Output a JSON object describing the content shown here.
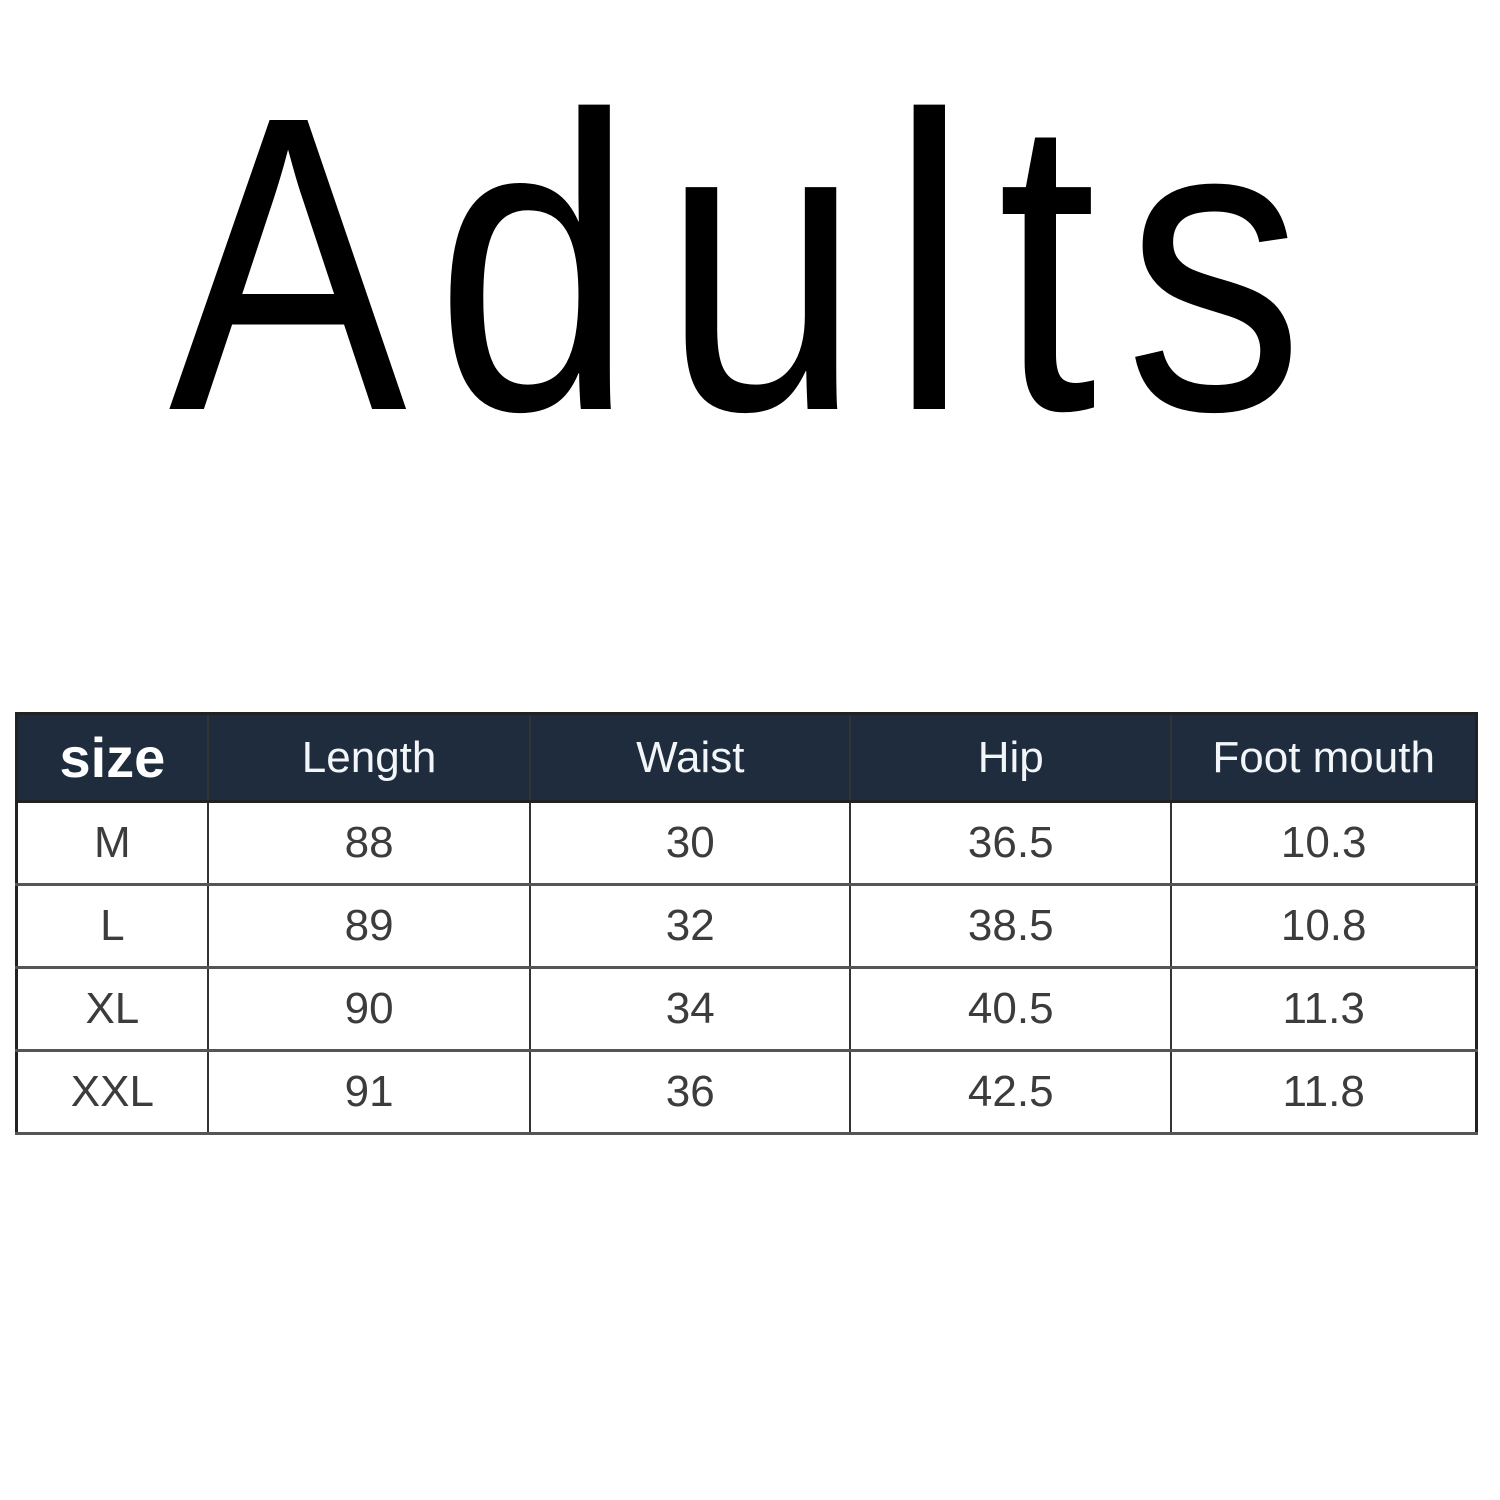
{
  "title": {
    "text": "Adults",
    "color": "#000000"
  },
  "table": {
    "columns": [
      "size",
      "Length",
      "Waist",
      "Hip",
      "Foot mouth"
    ],
    "rows": [
      [
        "M",
        "88",
        "30",
        "36.5",
        "10.3"
      ],
      [
        "L",
        "89",
        "32",
        "38.5",
        "10.8"
      ],
      [
        "XL",
        "90",
        "34",
        "40.5",
        "11.3"
      ],
      [
        "XXL",
        "91",
        "36",
        "42.5",
        "11.8"
      ]
    ],
    "colors": {
      "header_bg": "#1f2c3e",
      "header_text": "#f2f6f8",
      "size_header_text": "#ffffff",
      "body_text": "#3c3c3c",
      "border_outer": "#222222",
      "border_inner_vertical": "#333333",
      "border_inner_horizontal": "#555555"
    },
    "chart_data": {
      "type": "table",
      "title": "Adults",
      "categories": [
        "size",
        "Length",
        "Waist",
        "Hip",
        "Foot mouth"
      ],
      "series": [
        {
          "name": "M",
          "values": [
            88,
            30,
            36.5,
            10.3
          ]
        },
        {
          "name": "L",
          "values": [
            89,
            32,
            38.5,
            10.8
          ]
        },
        {
          "name": "XL",
          "values": [
            90,
            34,
            40.5,
            11.3
          ]
        },
        {
          "name": "XXL",
          "values": [
            91,
            36,
            42.5,
            11.8
          ]
        }
      ]
    }
  }
}
